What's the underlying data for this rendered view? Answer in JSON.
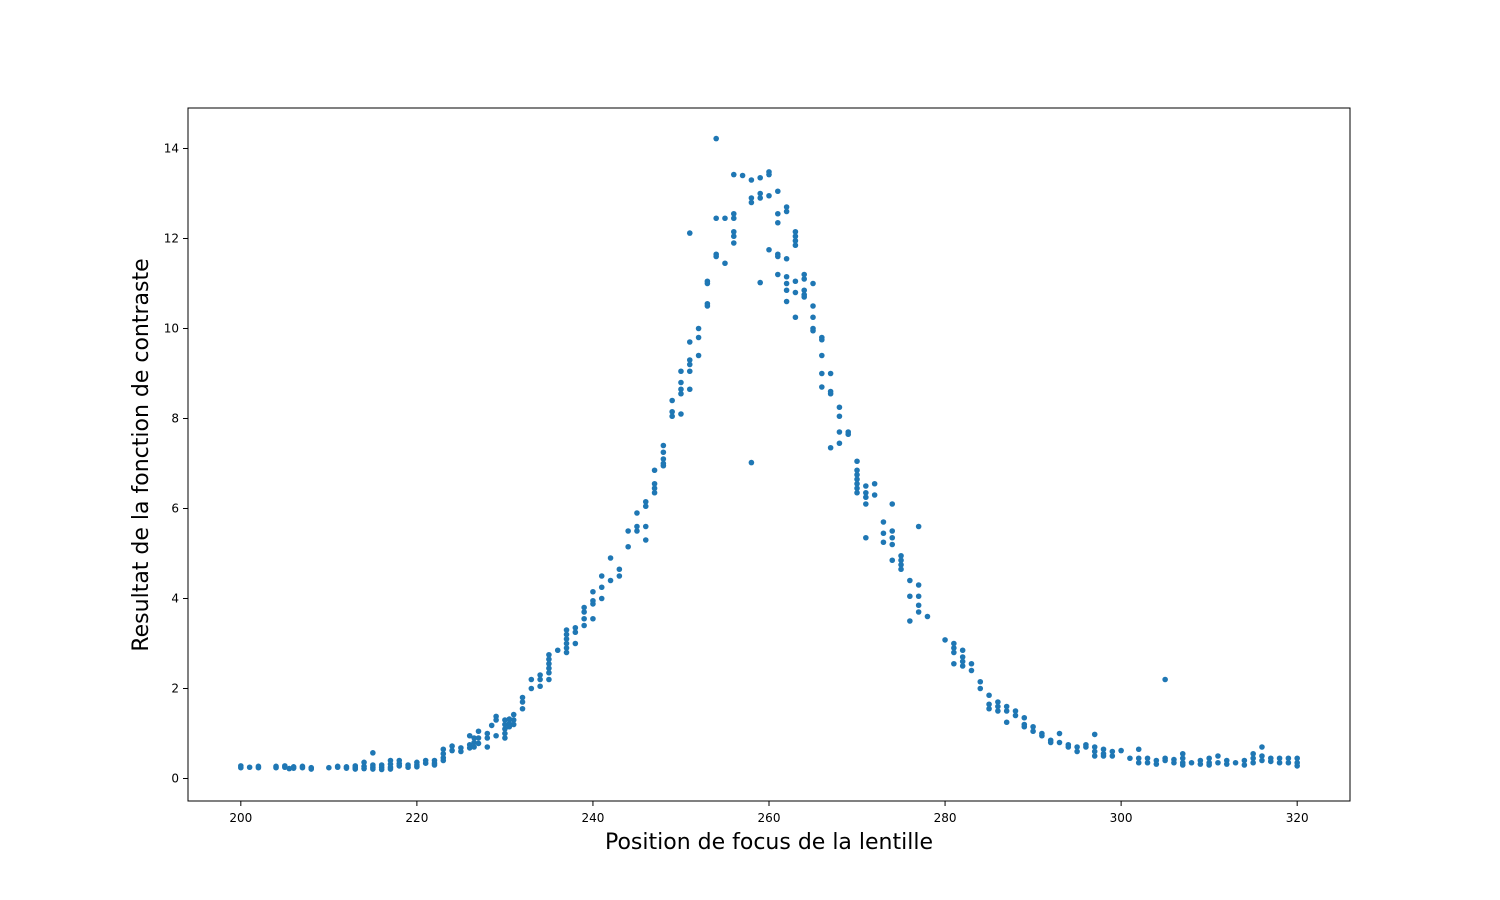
{
  "chart_data": {
    "type": "scatter",
    "title": "",
    "xlabel": "Position de focus de la lentille",
    "ylabel": "Resultat de la fonction de contraste",
    "xlim": [
      194,
      326
    ],
    "ylim": [
      -0.5,
      14.9
    ],
    "xticks": [
      200,
      220,
      240,
      260,
      280,
      300,
      320
    ],
    "yticks": [
      0,
      2,
      4,
      6,
      8,
      10,
      12,
      14
    ],
    "grid": false,
    "legend": "none",
    "color": "#1f77b4",
    "points": [
      [
        200,
        0.28
      ],
      [
        200,
        0.24
      ],
      [
        201,
        0.25
      ],
      [
        202,
        0.27
      ],
      [
        202,
        0.24
      ],
      [
        204,
        0.27
      ],
      [
        204,
        0.24
      ],
      [
        205,
        0.28
      ],
      [
        205,
        0.25
      ],
      [
        205.5,
        0.22
      ],
      [
        206,
        0.26
      ],
      [
        206,
        0.23
      ],
      [
        207,
        0.27
      ],
      [
        207,
        0.24
      ],
      [
        208,
        0.24
      ],
      [
        208,
        0.21
      ],
      [
        210,
        0.24
      ],
      [
        211,
        0.27
      ],
      [
        211,
        0.25
      ],
      [
        212,
        0.26
      ],
      [
        212,
        0.23
      ],
      [
        213,
        0.28
      ],
      [
        213,
        0.24
      ],
      [
        213,
        0.21
      ],
      [
        214,
        0.36
      ],
      [
        214,
        0.27
      ],
      [
        214,
        0.22
      ],
      [
        215,
        0.57
      ],
      [
        215,
        0.3
      ],
      [
        215,
        0.25
      ],
      [
        215,
        0.21
      ],
      [
        216,
        0.3
      ],
      [
        216,
        0.25
      ],
      [
        216,
        0.2
      ],
      [
        217,
        0.4
      ],
      [
        217,
        0.32
      ],
      [
        217,
        0.25
      ],
      [
        217,
        0.21
      ],
      [
        218,
        0.4
      ],
      [
        218,
        0.33
      ],
      [
        218,
        0.28
      ],
      [
        219,
        0.3
      ],
      [
        219,
        0.25
      ],
      [
        220,
        0.36
      ],
      [
        220,
        0.3
      ],
      [
        220,
        0.26
      ],
      [
        221,
        0.4
      ],
      [
        221,
        0.34
      ],
      [
        222,
        0.4
      ],
      [
        222,
        0.34
      ],
      [
        222,
        0.3
      ],
      [
        223,
        0.65
      ],
      [
        223,
        0.55
      ],
      [
        223,
        0.46
      ],
      [
        223,
        0.4
      ],
      [
        224,
        0.72
      ],
      [
        224,
        0.62
      ],
      [
        225,
        0.68
      ],
      [
        225,
        0.6
      ],
      [
        226,
        0.95
      ],
      [
        226,
        0.75
      ],
      [
        226,
        0.68
      ],
      [
        226.5,
        0.9
      ],
      [
        226.5,
        0.8
      ],
      [
        226.5,
        0.7
      ],
      [
        227,
        1.05
      ],
      [
        227,
        0.9
      ],
      [
        227,
        0.78
      ],
      [
        228,
        1.0
      ],
      [
        228,
        0.9
      ],
      [
        228,
        0.7
      ],
      [
        228.5,
        1.18
      ],
      [
        229,
        1.38
      ],
      [
        229,
        1.3
      ],
      [
        229,
        0.95
      ],
      [
        230,
        1.3
      ],
      [
        230,
        1.2
      ],
      [
        230,
        1.1
      ],
      [
        230,
        1.0
      ],
      [
        230,
        0.9
      ],
      [
        230.5,
        1.32
      ],
      [
        230.5,
        1.22
      ],
      [
        230.5,
        1.15
      ],
      [
        231,
        1.42
      ],
      [
        231,
        1.3
      ],
      [
        231,
        1.2
      ],
      [
        232,
        1.8
      ],
      [
        232,
        1.7
      ],
      [
        232,
        1.55
      ],
      [
        233,
        2.2
      ],
      [
        233,
        2.0
      ],
      [
        234,
        2.3
      ],
      [
        234,
        2.2
      ],
      [
        234,
        2.05
      ],
      [
        235,
        2.75
      ],
      [
        235,
        2.65
      ],
      [
        235,
        2.55
      ],
      [
        235,
        2.45
      ],
      [
        235,
        2.35
      ],
      [
        235,
        2.2
      ],
      [
        236,
        2.85
      ],
      [
        237,
        3.3
      ],
      [
        237,
        3.2
      ],
      [
        237,
        3.1
      ],
      [
        237,
        3.0
      ],
      [
        237,
        2.9
      ],
      [
        237,
        2.8
      ],
      [
        238,
        3.35
      ],
      [
        238,
        3.25
      ],
      [
        238,
        3.0
      ],
      [
        239,
        3.8
      ],
      [
        239,
        3.7
      ],
      [
        239,
        3.55
      ],
      [
        239,
        3.4
      ],
      [
        240,
        4.15
      ],
      [
        240,
        3.95
      ],
      [
        240,
        3.88
      ],
      [
        240,
        3.55
      ],
      [
        241,
        4.5
      ],
      [
        241,
        4.25
      ],
      [
        241,
        4.0
      ],
      [
        242,
        4.9
      ],
      [
        242,
        4.4
      ],
      [
        243,
        4.65
      ],
      [
        243,
        4.5
      ],
      [
        244,
        5.5
      ],
      [
        244,
        5.15
      ],
      [
        245,
        5.9
      ],
      [
        245,
        5.6
      ],
      [
        245,
        5.5
      ],
      [
        246,
        6.15
      ],
      [
        246,
        6.05
      ],
      [
        246,
        5.6
      ],
      [
        246,
        5.3
      ],
      [
        247,
        6.85
      ],
      [
        247,
        6.55
      ],
      [
        247,
        6.45
      ],
      [
        247,
        6.35
      ],
      [
        248,
        7.4
      ],
      [
        248,
        7.25
      ],
      [
        248,
        7.1
      ],
      [
        248,
        7.0
      ],
      [
        248,
        6.95
      ],
      [
        249,
        8.4
      ],
      [
        249,
        8.15
      ],
      [
        249,
        8.05
      ],
      [
        250,
        9.05
      ],
      [
        250,
        8.8
      ],
      [
        250,
        8.65
      ],
      [
        250,
        8.55
      ],
      [
        250,
        8.1
      ],
      [
        251,
        12.12
      ],
      [
        251,
        9.7
      ],
      [
        251,
        9.3
      ],
      [
        251,
        9.2
      ],
      [
        251,
        9.05
      ],
      [
        251,
        8.65
      ],
      [
        252,
        10.0
      ],
      [
        252,
        9.8
      ],
      [
        252,
        9.4
      ],
      [
        253,
        11.05
      ],
      [
        253,
        11.0
      ],
      [
        253,
        10.55
      ],
      [
        253,
        10.5
      ],
      [
        254,
        14.22
      ],
      [
        254,
        12.45
      ],
      [
        254,
        11.65
      ],
      [
        254,
        11.6
      ],
      [
        255,
        12.45
      ],
      [
        255,
        11.45
      ],
      [
        256,
        13.42
      ],
      [
        256,
        12.55
      ],
      [
        256,
        12.45
      ],
      [
        256,
        12.15
      ],
      [
        256,
        12.05
      ],
      [
        256,
        11.9
      ],
      [
        257,
        13.4
      ],
      [
        258,
        13.3
      ],
      [
        258,
        12.9
      ],
      [
        258,
        12.8
      ],
      [
        258,
        7.02
      ],
      [
        259,
        13.35
      ],
      [
        259,
        13.0
      ],
      [
        259,
        12.9
      ],
      [
        259,
        11.02
      ],
      [
        260,
        13.48
      ],
      [
        260,
        13.42
      ],
      [
        260,
        12.95
      ],
      [
        260,
        11.75
      ],
      [
        261,
        13.05
      ],
      [
        261,
        12.55
      ],
      [
        261,
        12.35
      ],
      [
        261,
        11.65
      ],
      [
        261,
        11.6
      ],
      [
        261,
        11.2
      ],
      [
        262,
        12.7
      ],
      [
        262,
        12.6
      ],
      [
        262,
        11.55
      ],
      [
        262,
        11.15
      ],
      [
        262,
        11.0
      ],
      [
        262,
        10.85
      ],
      [
        262,
        10.6
      ],
      [
        263,
        12.15
      ],
      [
        263,
        12.05
      ],
      [
        263,
        11.95
      ],
      [
        263,
        11.85
      ],
      [
        263,
        11.05
      ],
      [
        263,
        10.8
      ],
      [
        263,
        10.25
      ],
      [
        264,
        11.2
      ],
      [
        264,
        11.1
      ],
      [
        264,
        10.85
      ],
      [
        264,
        10.75
      ],
      [
        264,
        10.7
      ],
      [
        265,
        11.0
      ],
      [
        265,
        10.5
      ],
      [
        265,
        10.25
      ],
      [
        265,
        10.0
      ],
      [
        265,
        9.95
      ],
      [
        266,
        9.8
      ],
      [
        266,
        9.75
      ],
      [
        266,
        9.4
      ],
      [
        266,
        9.0
      ],
      [
        266,
        8.7
      ],
      [
        267,
        9.0
      ],
      [
        267,
        8.6
      ],
      [
        267,
        8.55
      ],
      [
        267,
        7.35
      ],
      [
        268,
        8.25
      ],
      [
        268,
        8.05
      ],
      [
        268,
        7.7
      ],
      [
        268,
        7.45
      ],
      [
        269,
        7.7
      ],
      [
        269,
        7.65
      ],
      [
        270,
        7.05
      ],
      [
        270,
        6.85
      ],
      [
        270,
        6.75
      ],
      [
        270,
        6.65
      ],
      [
        270,
        6.55
      ],
      [
        270,
        6.45
      ],
      [
        270,
        6.35
      ],
      [
        271,
        6.5
      ],
      [
        271,
        6.35
      ],
      [
        271,
        6.25
      ],
      [
        271,
        6.1
      ],
      [
        271,
        5.35
      ],
      [
        272,
        6.55
      ],
      [
        272,
        6.3
      ],
      [
        273,
        5.7
      ],
      [
        273,
        5.45
      ],
      [
        273,
        5.25
      ],
      [
        274,
        6.1
      ],
      [
        274,
        5.5
      ],
      [
        274,
        5.35
      ],
      [
        274,
        5.2
      ],
      [
        274,
        4.85
      ],
      [
        275,
        4.95
      ],
      [
        275,
        4.85
      ],
      [
        275,
        4.75
      ],
      [
        275,
        4.65
      ],
      [
        276,
        4.4
      ],
      [
        276,
        4.05
      ],
      [
        276,
        3.5
      ],
      [
        277,
        5.6
      ],
      [
        277,
        4.3
      ],
      [
        277,
        4.05
      ],
      [
        277,
        3.85
      ],
      [
        277,
        3.7
      ],
      [
        278,
        3.6
      ],
      [
        280,
        3.08
      ],
      [
        281,
        3.0
      ],
      [
        281,
        2.9
      ],
      [
        281,
        2.8
      ],
      [
        281,
        2.55
      ],
      [
        282,
        2.85
      ],
      [
        282,
        2.7
      ],
      [
        282,
        2.6
      ],
      [
        282,
        2.5
      ],
      [
        283,
        2.55
      ],
      [
        283,
        2.4
      ],
      [
        284,
        2.15
      ],
      [
        284,
        2.0
      ],
      [
        285,
        1.85
      ],
      [
        285,
        1.65
      ],
      [
        285,
        1.55
      ],
      [
        286,
        1.7
      ],
      [
        286,
        1.6
      ],
      [
        286,
        1.5
      ],
      [
        287,
        1.6
      ],
      [
        287,
        1.5
      ],
      [
        287,
        1.25
      ],
      [
        288,
        1.5
      ],
      [
        288,
        1.4
      ],
      [
        289,
        1.35
      ],
      [
        289,
        1.2
      ],
      [
        289,
        1.15
      ],
      [
        290,
        1.15
      ],
      [
        290,
        1.05
      ],
      [
        291,
        1.0
      ],
      [
        291,
        0.95
      ],
      [
        292,
        0.85
      ],
      [
        292,
        0.8
      ],
      [
        293,
        1.0
      ],
      [
        293,
        0.8
      ],
      [
        294,
        0.75
      ],
      [
        294,
        0.7
      ],
      [
        295,
        0.7
      ],
      [
        295,
        0.6
      ],
      [
        296,
        0.75
      ],
      [
        296,
        0.7
      ],
      [
        297,
        0.98
      ],
      [
        297,
        0.7
      ],
      [
        297,
        0.6
      ],
      [
        297,
        0.5
      ],
      [
        298,
        0.65
      ],
      [
        298,
        0.55
      ],
      [
        298,
        0.5
      ],
      [
        299,
        0.6
      ],
      [
        299,
        0.5
      ],
      [
        300,
        0.62
      ],
      [
        301,
        0.45
      ],
      [
        302,
        0.65
      ],
      [
        302,
        0.45
      ],
      [
        302,
        0.35
      ],
      [
        303,
        0.45
      ],
      [
        303,
        0.35
      ],
      [
        304,
        0.4
      ],
      [
        304,
        0.32
      ],
      [
        305,
        2.2
      ],
      [
        305,
        0.45
      ],
      [
        305,
        0.4
      ],
      [
        306,
        0.42
      ],
      [
        306,
        0.35
      ],
      [
        307,
        0.55
      ],
      [
        307,
        0.45
      ],
      [
        307,
        0.35
      ],
      [
        307,
        0.3
      ],
      [
        308,
        0.35
      ],
      [
        309,
        0.4
      ],
      [
        309,
        0.32
      ],
      [
        310,
        0.45
      ],
      [
        310,
        0.35
      ],
      [
        310,
        0.3
      ],
      [
        311,
        0.5
      ],
      [
        311,
        0.35
      ],
      [
        312,
        0.4
      ],
      [
        312,
        0.32
      ],
      [
        313,
        0.35
      ],
      [
        314,
        0.4
      ],
      [
        314,
        0.3
      ],
      [
        315,
        0.55
      ],
      [
        315,
        0.45
      ],
      [
        315,
        0.35
      ],
      [
        316,
        0.7
      ],
      [
        316,
        0.5
      ],
      [
        316,
        0.4
      ],
      [
        317,
        0.45
      ],
      [
        317,
        0.38
      ],
      [
        318,
        0.45
      ],
      [
        318,
        0.35
      ],
      [
        319,
        0.45
      ],
      [
        319,
        0.35
      ],
      [
        320,
        0.45
      ],
      [
        320,
        0.35
      ],
      [
        320,
        0.28
      ]
    ]
  }
}
